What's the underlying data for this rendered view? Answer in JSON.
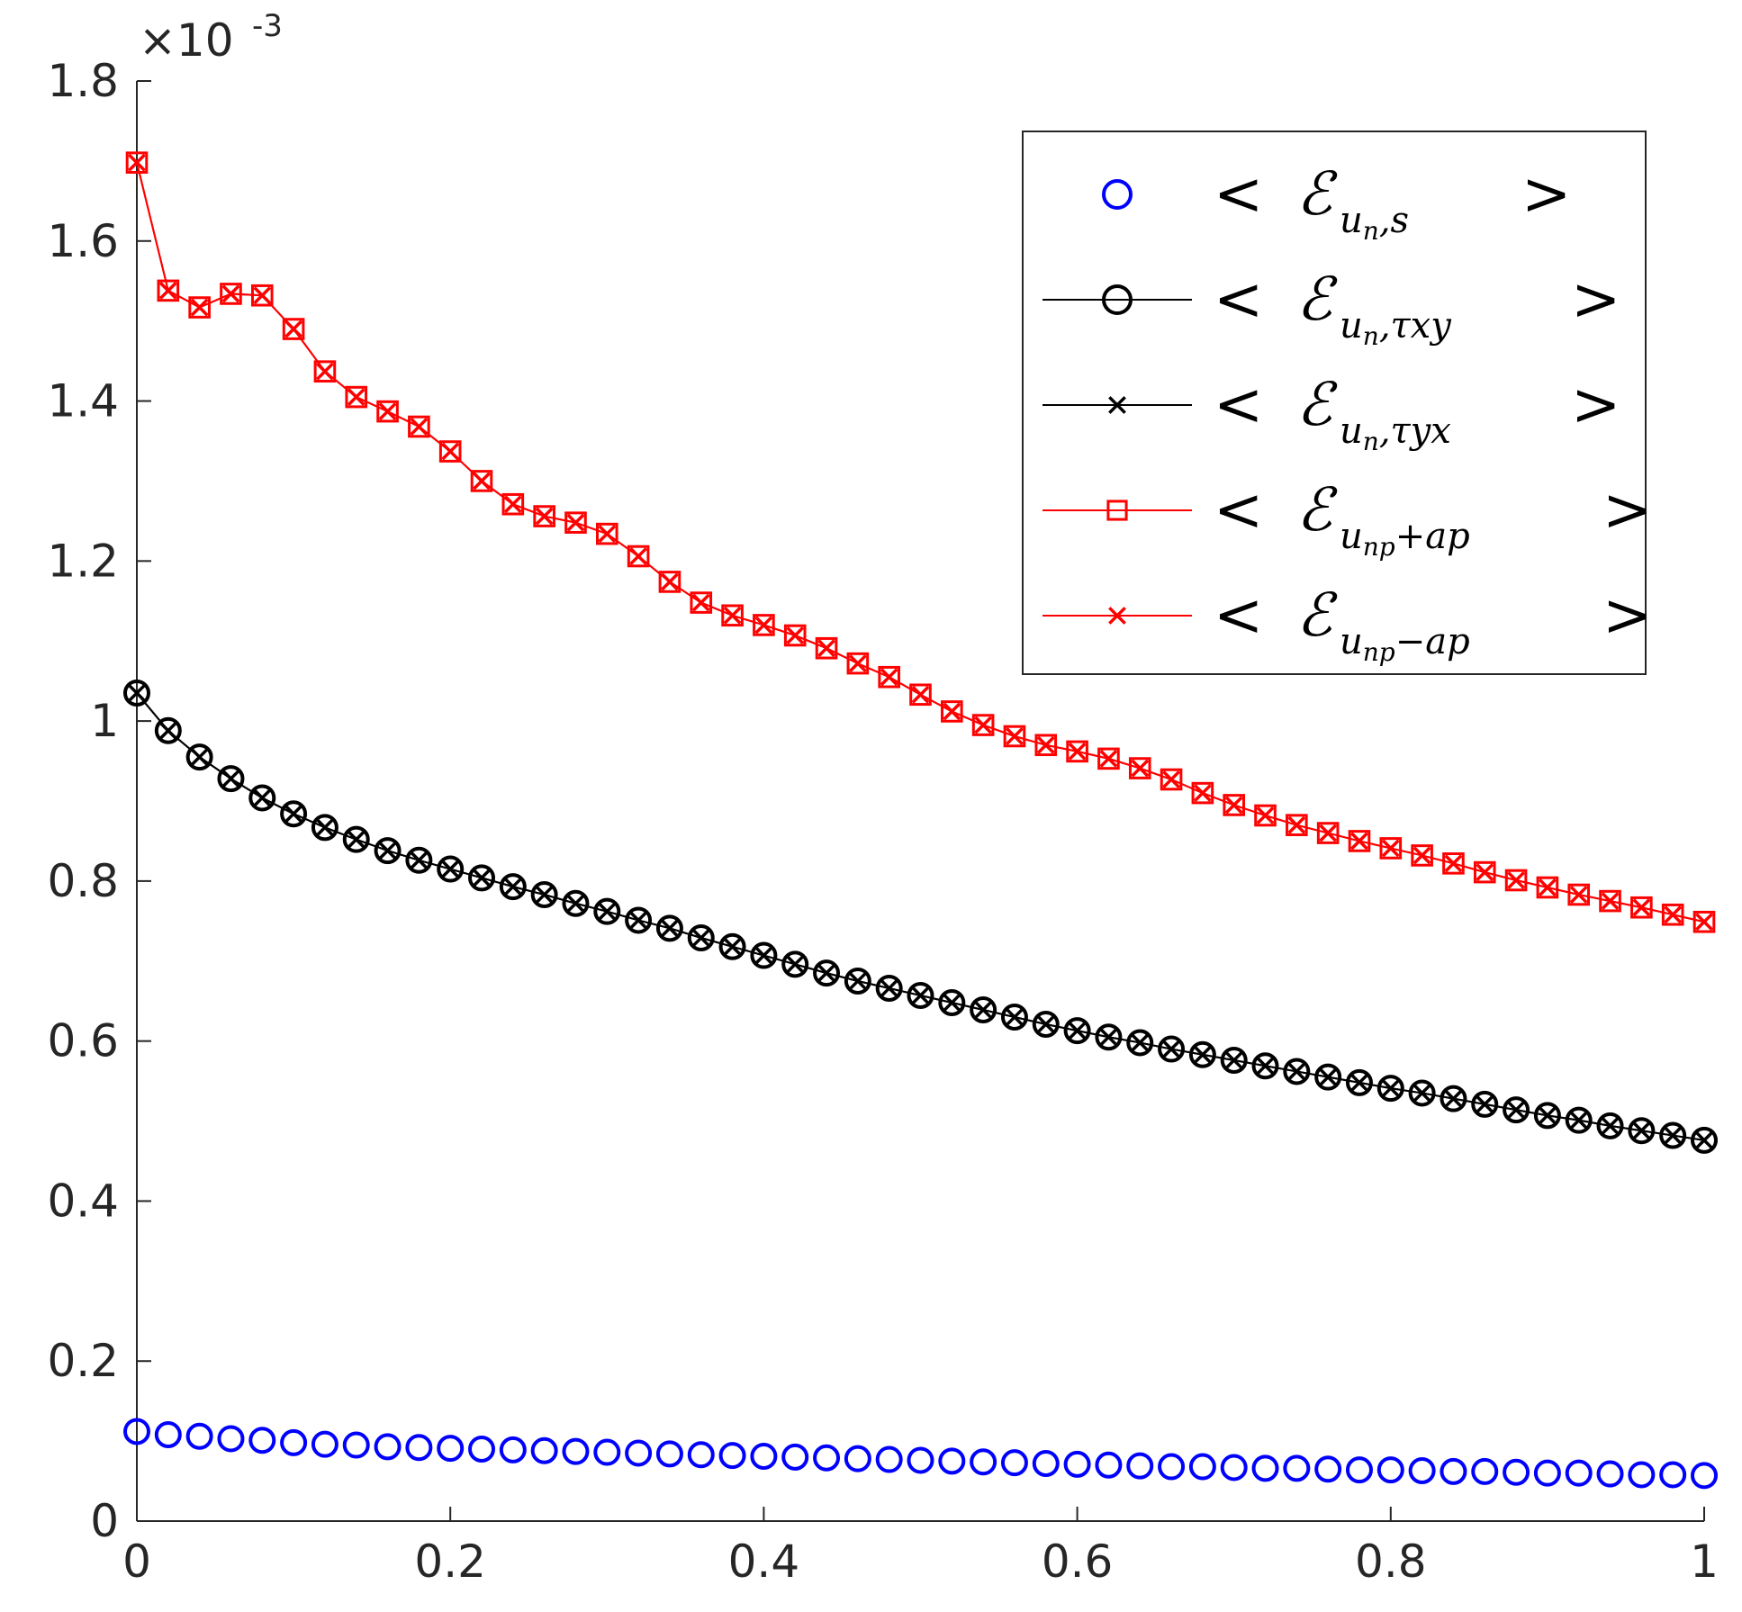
{
  "chart_data": {
    "type": "line",
    "title": "",
    "xlabel": "",
    "ylabel": "",
    "xlim": [
      0,
      1
    ],
    "ylim": [
      0,
      0.0018
    ],
    "x_ticks": [
      0,
      0.2,
      0.4,
      0.6,
      0.8,
      1
    ],
    "x_tick_labels": [
      "0",
      "0.2",
      "0.4",
      "0.6",
      "0.8",
      "1"
    ],
    "y_ticks": [
      0,
      0.2,
      0.4,
      0.6,
      0.8,
      1,
      1.2,
      1.4,
      1.6,
      1.8
    ],
    "y_tick_labels": [
      "0",
      "0.2",
      "0.4",
      "0.6",
      "0.8",
      "1",
      "1.2",
      "1.4",
      "1.6",
      "1.8"
    ],
    "y_exponent": {
      "base": "×10",
      "power": "-3"
    },
    "legend_position": "top-right",
    "x": [
      0,
      0.02,
      0.04,
      0.06,
      0.08,
      0.1,
      0.12,
      0.14,
      0.16,
      0.18,
      0.2,
      0.22,
      0.24,
      0.26,
      0.28,
      0.3,
      0.32,
      0.34,
      0.36,
      0.38,
      0.4,
      0.42,
      0.44,
      0.46,
      0.48,
      0.5,
      0.52,
      0.54,
      0.56,
      0.58,
      0.6,
      0.62,
      0.64,
      0.66,
      0.68,
      0.7,
      0.72,
      0.74,
      0.76,
      0.78,
      0.8,
      0.82,
      0.84,
      0.86,
      0.88,
      0.9,
      0.92,
      0.94,
      0.96,
      0.98,
      1
    ],
    "series": [
      {
        "name": "< E_{u_n,s} >",
        "label_main": "u",
        "label_sub": "n",
        "label_tail": ",s",
        "color": "#0000ff",
        "line": false,
        "marker": "circle",
        "values": [
          0.000112,
          0.000108,
          0.000106,
          0.000103,
          0.000101,
          9.8e-05,
          9.6e-05,
          9.5e-05,
          9.3e-05,
          9.2e-05,
          9.1e-05,
          9e-05,
          8.9e-05,
          8.8e-05,
          8.7e-05,
          8.6e-05,
          8.5e-05,
          8.4e-05,
          8.3e-05,
          8.2e-05,
          8.1e-05,
          8e-05,
          7.9e-05,
          7.8e-05,
          7.7e-05,
          7.6e-05,
          7.5e-05,
          7.4e-05,
          7.3e-05,
          7.2e-05,
          7.1e-05,
          7e-05,
          6.9e-05,
          6.8e-05,
          6.8e-05,
          6.7e-05,
          6.6e-05,
          6.6e-05,
          6.5e-05,
          6.4e-05,
          6.4e-05,
          6.3e-05,
          6.2e-05,
          6.2e-05,
          6.1e-05,
          6e-05,
          6e-05,
          5.9e-05,
          5.8e-05,
          5.8e-05,
          5.7e-05
        ]
      },
      {
        "name": "< E_{u_n,τ_xy} >",
        "label_main": "u",
        "label_sub": "n",
        "label_tail": ",τxy",
        "color": "#000000",
        "line": true,
        "marker": "circle",
        "values": [
          0.001035,
          0.000988,
          0.000955,
          0.000928,
          0.000904,
          0.000884,
          0.000867,
          0.000852,
          0.000838,
          0.000826,
          0.000815,
          0.000804,
          0.000793,
          0.000783,
          0.000772,
          0.000762,
          0.000751,
          0.000741,
          0.000729,
          0.000718,
          0.000707,
          0.000696,
          0.000685,
          0.000675,
          0.000666,
          0.000657,
          0.000648,
          0.000639,
          0.00063,
          0.000621,
          0.000613,
          0.000605,
          0.000598,
          0.00059,
          0.000583,
          0.000576,
          0.000569,
          0.000562,
          0.000555,
          0.000548,
          0.000541,
          0.000535,
          0.000528,
          0.000521,
          0.000514,
          0.000507,
          0.000501,
          0.000494,
          0.000488,
          0.000482,
          0.000476
        ]
      },
      {
        "name": "< E_{u_n,τ_yx} >",
        "label_main": "u",
        "label_sub": "n",
        "label_tail": ",τyx",
        "color": "#000000",
        "line": true,
        "marker": "x",
        "values": [
          0.001035,
          0.000988,
          0.000955,
          0.000928,
          0.000904,
          0.000884,
          0.000867,
          0.000852,
          0.000838,
          0.000826,
          0.000815,
          0.000804,
          0.000793,
          0.000783,
          0.000772,
          0.000762,
          0.000751,
          0.000741,
          0.000729,
          0.000718,
          0.000707,
          0.000696,
          0.000685,
          0.000675,
          0.000666,
          0.000657,
          0.000648,
          0.000639,
          0.00063,
          0.000621,
          0.000613,
          0.000605,
          0.000598,
          0.00059,
          0.000583,
          0.000576,
          0.000569,
          0.000562,
          0.000555,
          0.000548,
          0.000541,
          0.000535,
          0.000528,
          0.000521,
          0.000514,
          0.000507,
          0.000501,
          0.000494,
          0.000488,
          0.000482,
          0.000476
        ]
      },
      {
        "name": "< E_{u_np+a_p} >",
        "label_main": "u",
        "label_sub": "np",
        "label_tail": "+ap",
        "color": "#ff0000",
        "line": true,
        "marker": "square",
        "values": [
          0.001698,
          0.001538,
          0.001517,
          0.001534,
          0.001532,
          0.00149,
          0.001437,
          0.001405,
          0.001387,
          0.001368,
          0.001337,
          0.0013,
          0.001271,
          0.001256,
          0.001248,
          0.001234,
          0.001206,
          0.001174,
          0.001148,
          0.001132,
          0.00112,
          0.001107,
          0.001091,
          0.001072,
          0.001055,
          0.001033,
          0.001012,
          0.000995,
          0.000981,
          0.00097,
          0.000962,
          0.000953,
          0.000941,
          0.000927,
          0.00091,
          0.000895,
          0.000882,
          0.00087,
          0.00086,
          0.00085,
          0.000841,
          0.000832,
          0.000822,
          0.000811,
          0.000801,
          0.000792,
          0.000783,
          0.000775,
          0.000767,
          0.000758,
          0.000749
        ]
      },
      {
        "name": "< E_{u_np-a_p} >",
        "label_main": "u",
        "label_sub": "np",
        "label_tail": "−ap",
        "color": "#ff0000",
        "line": true,
        "marker": "x",
        "values": [
          0.001698,
          0.001538,
          0.001517,
          0.001534,
          0.001532,
          0.00149,
          0.001437,
          0.001405,
          0.001387,
          0.001368,
          0.001337,
          0.0013,
          0.001271,
          0.001256,
          0.001248,
          0.001234,
          0.001206,
          0.001174,
          0.001148,
          0.001132,
          0.00112,
          0.001107,
          0.001091,
          0.001072,
          0.001055,
          0.001033,
          0.001012,
          0.000995,
          0.000981,
          0.00097,
          0.000962,
          0.000953,
          0.000941,
          0.000927,
          0.00091,
          0.000895,
          0.000882,
          0.00087,
          0.00086,
          0.00085,
          0.000841,
          0.000832,
          0.000822,
          0.000811,
          0.000801,
          0.000792,
          0.000783,
          0.000775,
          0.000767,
          0.000758,
          0.000749
        ]
      }
    ]
  }
}
